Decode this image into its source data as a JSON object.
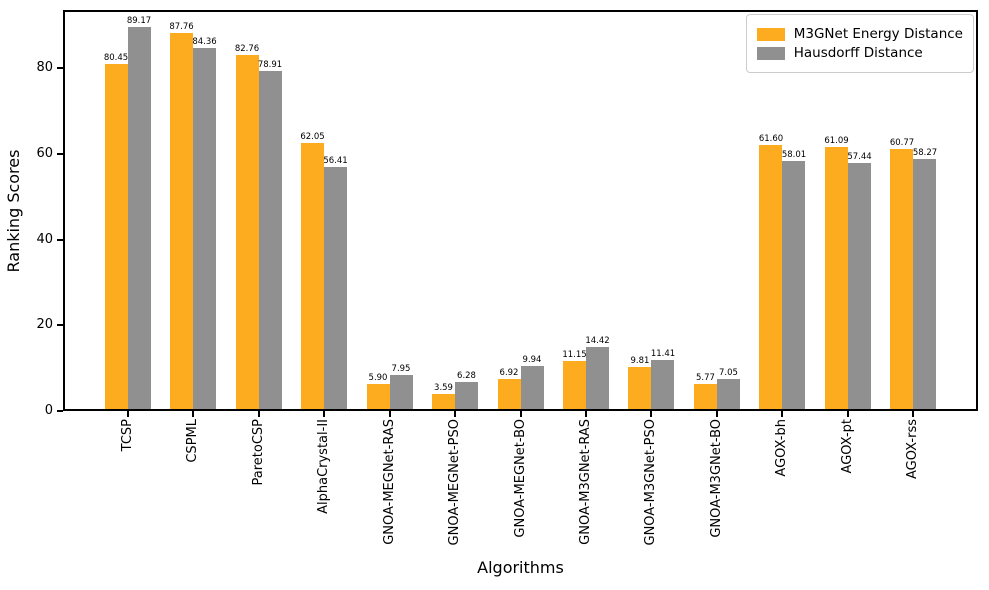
{
  "chart_data": {
    "type": "bar",
    "title": "",
    "xlabel": "Algorithms",
    "ylabel": "Ranking Scores",
    "categories": [
      "TCSP",
      "CSPML",
      "ParetoCSP",
      "AlphaCrystal-II",
      "GNOA-MEGNet-RAS",
      "GNOA-MEGNet-PSO",
      "GNOA-MEGNet-BO",
      "GNOA-M3GNet-RAS",
      "GNOA-M3GNet-PSO",
      "GNOA-M3GNet-BO",
      "AGOX-bh",
      "AGOX-pt",
      "AGOX-rss"
    ],
    "series": [
      {
        "name": "M3GNet Energy Distance",
        "color": "#FCAC1E",
        "values": [
          80.45,
          87.76,
          82.76,
          62.05,
          5.9,
          3.59,
          6.92,
          11.15,
          9.81,
          5.77,
          61.6,
          61.09,
          60.77
        ]
      },
      {
        "name": "Hausdorff Distance",
        "color": "#909090",
        "values": [
          89.17,
          84.36,
          78.91,
          56.41,
          7.95,
          6.28,
          9.94,
          14.42,
          11.41,
          7.05,
          58.01,
          57.44,
          58.27
        ]
      }
    ],
    "yticks": [
      0,
      20,
      40,
      60,
      80
    ],
    "ylim": [
      0,
      93.63
    ],
    "grid": false,
    "value_labels": true,
    "value_label_decimals": 2,
    "legend_position": "upper right",
    "axis_color": "#000000",
    "background_color": "#ffffff"
  }
}
